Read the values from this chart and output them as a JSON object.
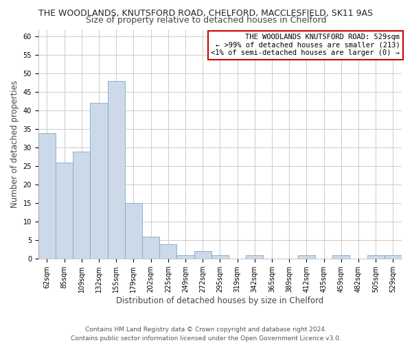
{
  "title": "THE WOODLANDS, KNUTSFORD ROAD, CHELFORD, MACCLESFIELD, SK11 9AS",
  "subtitle": "Size of property relative to detached houses in Chelford",
  "xlabel": "Distribution of detached houses by size in Chelford",
  "ylabel": "Number of detached properties",
  "bar_color": "#ccd9e8",
  "bar_edge_color": "#7aaac8",
  "categories": [
    "62sqm",
    "85sqm",
    "109sqm",
    "132sqm",
    "155sqm",
    "179sqm",
    "202sqm",
    "225sqm",
    "249sqm",
    "272sqm",
    "295sqm",
    "319sqm",
    "342sqm",
    "365sqm",
    "389sqm",
    "412sqm",
    "435sqm",
    "459sqm",
    "482sqm",
    "505sqm",
    "529sqm"
  ],
  "values": [
    34,
    26,
    29,
    42,
    48,
    15,
    6,
    4,
    1,
    2,
    1,
    0,
    1,
    0,
    0,
    1,
    0,
    1,
    0,
    1,
    1
  ],
  "ylim": [
    0,
    62
  ],
  "yticks": [
    0,
    5,
    10,
    15,
    20,
    25,
    30,
    35,
    40,
    45,
    50,
    55,
    60
  ],
  "legend_title": "THE WOODLANDS KNUTSFORD ROAD: 529sqm",
  "legend_line2": "← >99% of detached houses are smaller (213)",
  "legend_line3": "<1% of semi-detached houses are larger (0) →",
  "legend_box_color": "#ffffff",
  "legend_box_edge": "#cc0000",
  "footer_line1": "Contains HM Land Registry data © Crown copyright and database right 2024.",
  "footer_line2": "Contains public sector information licensed under the Open Government Licence v3.0.",
  "background_color": "#ffffff",
  "plot_bg_color": "#ffffff",
  "grid_color": "#cccccc",
  "title_fontsize": 9,
  "subtitle_fontsize": 9,
  "axis_label_fontsize": 8.5,
  "tick_fontsize": 7,
  "legend_fontsize": 7.5,
  "footer_fontsize": 6.5
}
